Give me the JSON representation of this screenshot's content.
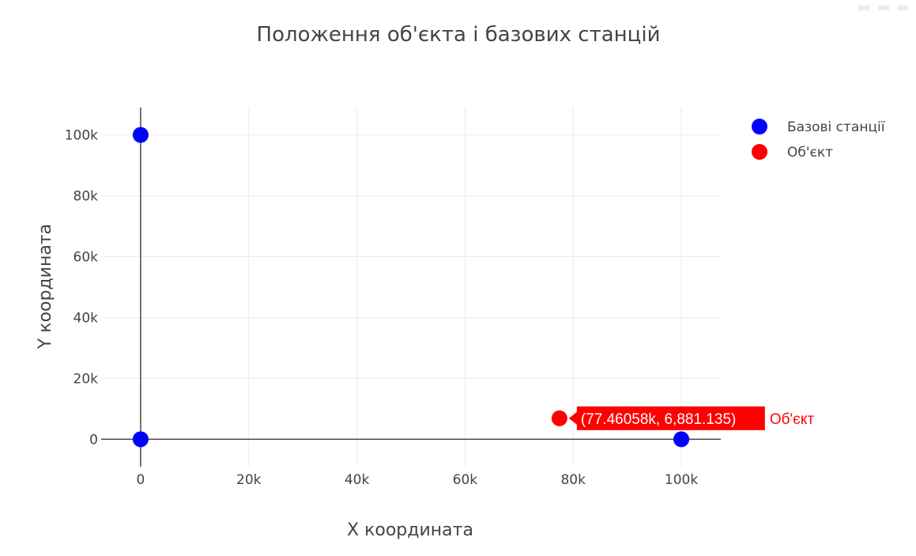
{
  "chart_data": {
    "type": "scatter",
    "title": "Положення об'єкта і базових станцій",
    "xlabel": "X координата",
    "ylabel": "Y координата",
    "xlim": [
      -7300,
      107300
    ],
    "ylim": [
      -9000,
      109000
    ],
    "x_ticks": [
      {
        "value": 0,
        "label": "0"
      },
      {
        "value": 20000,
        "label": "20k"
      },
      {
        "value": 40000,
        "label": "40k"
      },
      {
        "value": 60000,
        "label": "60k"
      },
      {
        "value": 80000,
        "label": "80k"
      },
      {
        "value": 100000,
        "label": "100k"
      }
    ],
    "y_ticks": [
      {
        "value": 0,
        "label": "0"
      },
      {
        "value": 20000,
        "label": "20k"
      },
      {
        "value": 40000,
        "label": "40k"
      },
      {
        "value": 60000,
        "label": "60k"
      },
      {
        "value": 80000,
        "label": "80k"
      },
      {
        "value": 100000,
        "label": "100k"
      }
    ],
    "grid": true,
    "legend_position": "top-right",
    "series": [
      {
        "name": "Базові станції",
        "color": "#0000ff",
        "points": [
          {
            "x": 0,
            "y": 100000
          },
          {
            "x": 0,
            "y": 0
          },
          {
            "x": 100000,
            "y": 0
          }
        ]
      },
      {
        "name": "Об'єкт",
        "color": "#ff0000",
        "points": [
          {
            "x": 77460.58,
            "y": 6881.135
          }
        ]
      }
    ],
    "hover_label": {
      "series": "Об'єкт",
      "text": "(77.46058k, 6,881.135)",
      "trace_name": "Об'єкт"
    }
  },
  "modebar_icon": "modebar-icons"
}
